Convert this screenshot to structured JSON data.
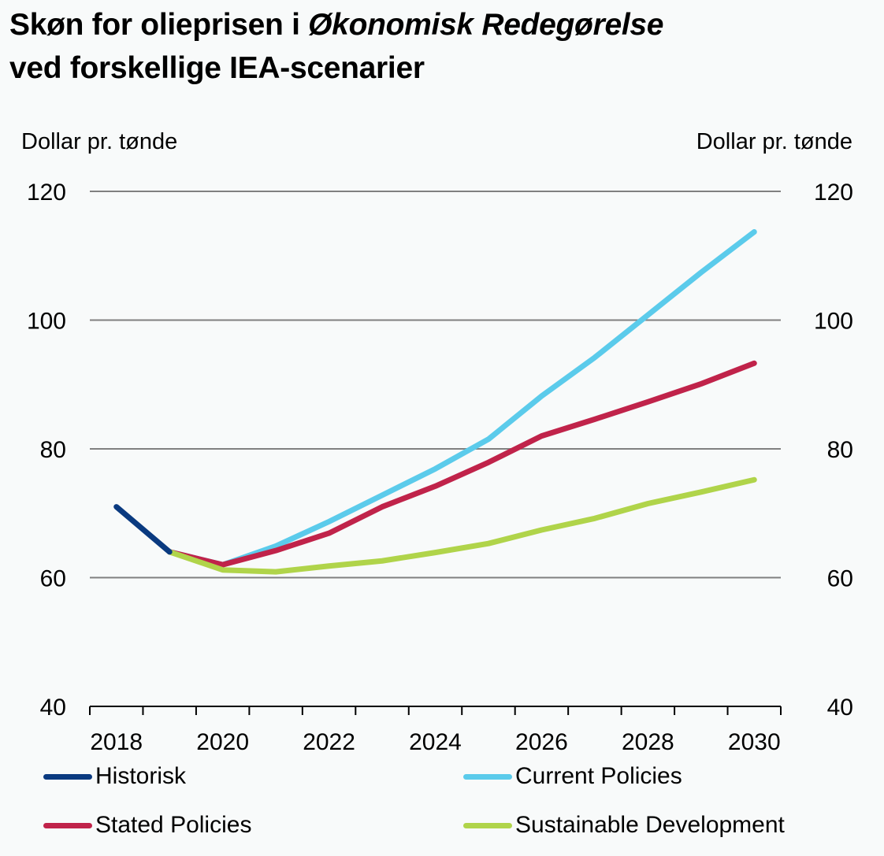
{
  "title": {
    "part1": "Skøn for olieprisen i ",
    "part2_italic": "Økonomisk Redegørelse",
    "line2": "ved forskellige IEA-scenarier"
  },
  "axes": {
    "left_unit": "Dollar pr. tønde",
    "right_unit": "Dollar pr. tønde"
  },
  "colors": {
    "historisk": "#0a3a80",
    "current_policies": "#5bcbeb",
    "stated_policies": "#c0234a",
    "sustainable_development": "#b0d44a",
    "gridline": "#808080",
    "axis": "#000000",
    "background": "#f8fafa"
  },
  "legend": [
    {
      "label": "Historisk",
      "series": "historisk"
    },
    {
      "label": "Current Policies",
      "series": "current_policies"
    },
    {
      "label": "Stated Policies",
      "series": "stated_policies"
    },
    {
      "label": "Sustainable Development",
      "series": "sustainable_development"
    }
  ],
  "chart_data": {
    "type": "line",
    "title": "Skøn for olieprisen i Økonomisk Redegørelse ved forskellige IEA-scenarier",
    "xlabel": "",
    "ylabel": "Dollar pr. tønde",
    "ylabel_right": "Dollar pr. tønde",
    "x": [
      2018,
      2019,
      2020,
      2021,
      2022,
      2023,
      2024,
      2025,
      2026,
      2027,
      2028,
      2029,
      2030
    ],
    "x_tick_labels": [
      "2018",
      "2020",
      "2022",
      "2024",
      "2026",
      "2028",
      "2030"
    ],
    "ylim": [
      40,
      120
    ],
    "y_ticks": [
      40,
      60,
      80,
      100,
      120
    ],
    "grid": true,
    "legend_position": "bottom",
    "series": [
      {
        "key": "historisk",
        "name": "Historisk",
        "values": [
          71,
          64,
          null,
          null,
          null,
          null,
          null,
          null,
          null,
          null,
          null,
          null,
          null
        ]
      },
      {
        "key": "current_policies",
        "name": "Current Policies",
        "values": [
          null,
          64,
          62,
          64.9,
          68.7,
          72.8,
          76.9,
          81.5,
          88.2,
          94.2,
          100.8,
          107.4,
          113.7
        ]
      },
      {
        "key": "stated_policies",
        "name": "Stated Policies",
        "values": [
          null,
          64,
          62,
          64.2,
          66.9,
          71.0,
          74.2,
          77.9,
          82.0,
          84.6,
          87.3,
          90.1,
          93.3
        ]
      },
      {
        "key": "sustainable_development",
        "name": "Sustainable Development",
        "values": [
          null,
          64,
          61.2,
          60.9,
          61.8,
          62.6,
          63.9,
          65.3,
          67.4,
          69.2,
          71.5,
          73.3,
          75.2
        ]
      }
    ]
  }
}
